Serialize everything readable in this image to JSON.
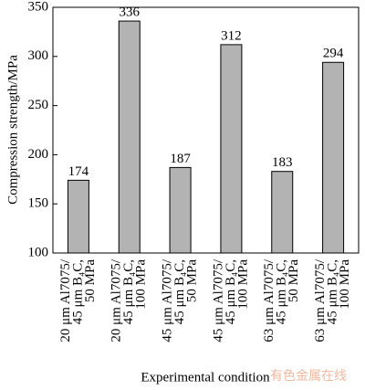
{
  "chart_data": {
    "type": "bar",
    "y_label": "Compression strength/MPa",
    "x_label": "Experimental condition",
    "categories": [
      "20 μm Al7075/\n45 μm B₄C,\n50 MPa",
      "20 μm Al7075/\n45 μm B₄C,\n100 MPa",
      "45 μm Al7075/\n45 μm B₄C,\n50 MPa",
      "45 μm Al7075/\n45 μm B₄C,\n100 MPa",
      "63 μm Al7075/\n45 μm B₄C,\n50 MPa",
      "63 μm Al7075/\n45 μm B₄C,\n100 MPa"
    ],
    "values": [
      174,
      336,
      187,
      312,
      183,
      294
    ],
    "color": "#b3b3b3",
    "ylim": [
      100,
      350
    ],
    "yticks": [
      100,
      150,
      200,
      250,
      300,
      350
    ],
    "grid": false,
    "watermark": "有色金属在线"
  }
}
